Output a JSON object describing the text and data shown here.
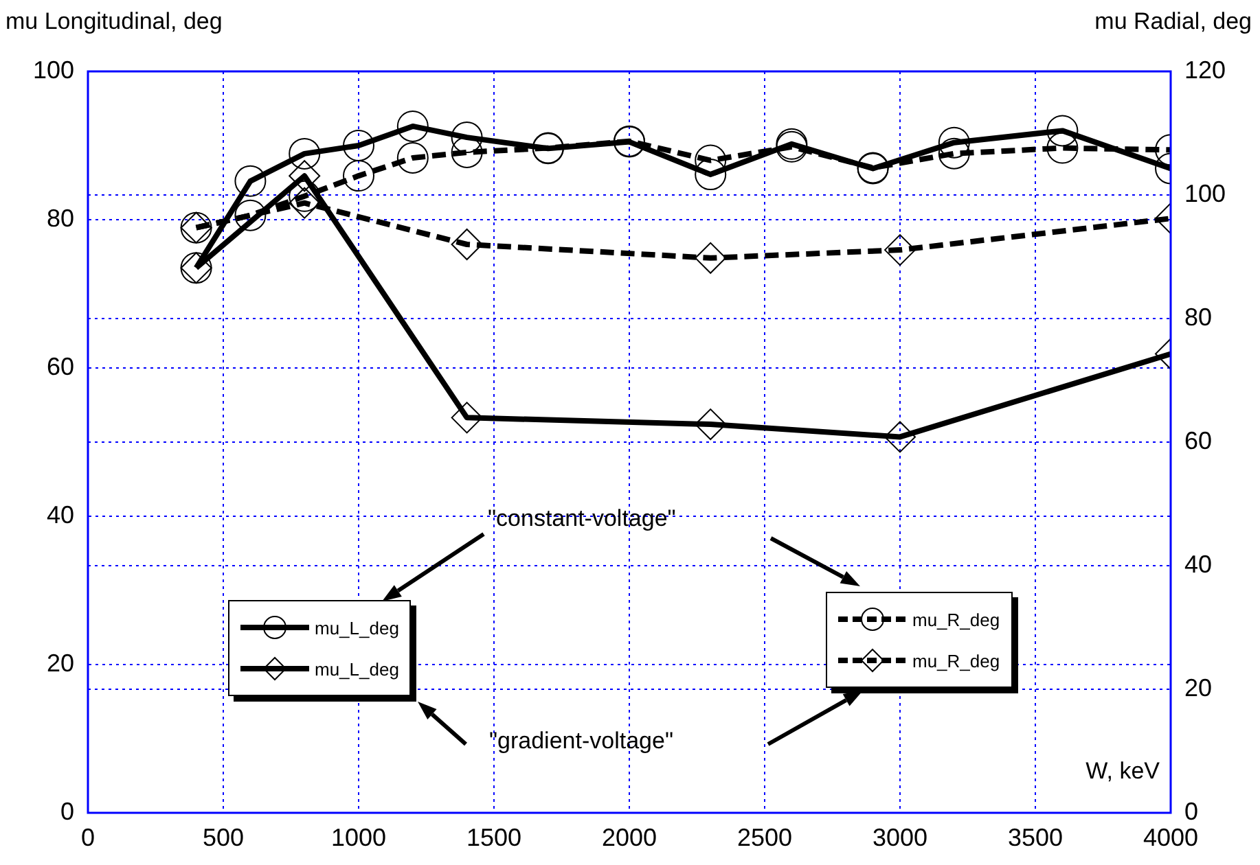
{
  "chart_data": {
    "type": "line",
    "xlabel": "W, keV",
    "ylabel": "mu Longitudinal, deg",
    "y2label": "mu Radial, deg",
    "xlim": [
      0,
      4000
    ],
    "xticks": [
      0,
      500,
      1000,
      1500,
      2000,
      2500,
      3000,
      3500,
      4000
    ],
    "ylim": [
      0,
      100
    ],
    "yticks": [
      0,
      20,
      40,
      60,
      80,
      100
    ],
    "y2lim": [
      0,
      120
    ],
    "y2ticks": [
      0,
      20,
      40,
      60,
      80,
      100,
      120
    ],
    "grid": true,
    "legend": "bottom",
    "annotations": [
      "\"constant-voltage\"",
      "\"gradient-voltage\""
    ],
    "series": [
      {
        "name": "mu_L_deg",
        "color": "#000000",
        "axis": "y",
        "marker": "circle",
        "line_style": "solid",
        "x": [
          400,
          600,
          800,
          1000,
          1200,
          1400,
          1700,
          2000,
          2300,
          2600,
          2900,
          3200,
          3600,
          4000
        ],
        "values": [
          73.5,
          85.2,
          88.9,
          90,
          92.6,
          91.1,
          89.6,
          90.5,
          86.1,
          90.2,
          86.9,
          90.4,
          92,
          86.9
        ]
      },
      {
        "name": "mu_L_deg",
        "color": "#000000",
        "axis": "y",
        "marker": "diamond",
        "line_style": "solid",
        "x": [
          400,
          800,
          1400,
          2300,
          3000,
          4000
        ],
        "values": [
          73.5,
          85.9,
          53.3,
          52.4,
          50.7,
          61.9
        ]
      },
      {
        "name": "mu_R_deg",
        "color": "#000000",
        "axis": "y2",
        "marker": "circle",
        "line_style": "dashed",
        "x": [
          400,
          600,
          800,
          1000,
          1200,
          1400,
          1700,
          2000,
          2300,
          2600,
          2900,
          3200,
          3600,
          4000
        ],
        "values": [
          94.7,
          96.7,
          99.8,
          103.1,
          106,
          106.9,
          107.6,
          108.7,
          105.6,
          107.8,
          104.4,
          106.7,
          107.6,
          107.3
        ]
      },
      {
        "name": "mu_R_deg",
        "color": "#000000",
        "axis": "y2",
        "marker": "diamond",
        "line_style": "dashed",
        "x": [
          400,
          800,
          1400,
          2300,
          3000,
          4000
        ],
        "values": [
          94.7,
          98.7,
          92,
          89.8,
          91.1,
          96.2
        ]
      }
    ]
  }
}
